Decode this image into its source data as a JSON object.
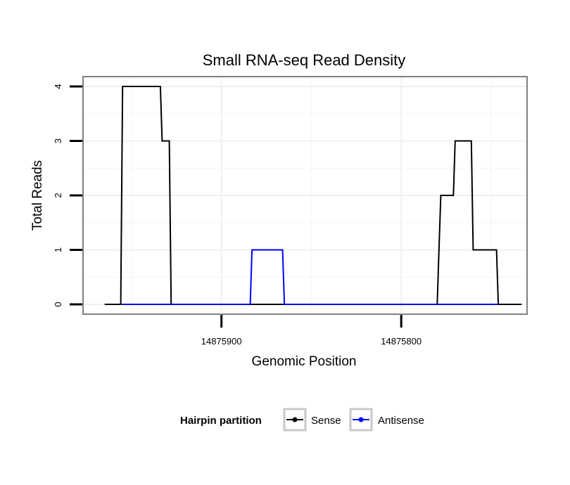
{
  "chart_data": {
    "type": "line",
    "title": "Small RNA-seq Read Density",
    "xlabel": "Genomic Position",
    "ylabel": "Total Reads",
    "x_reversed": true,
    "xlim": [
      14875977,
      14875730
    ],
    "ylim": [
      -0.18,
      4.18
    ],
    "x_ticks": [
      14875900,
      14875800
    ],
    "x_tick_labels": [
      "14875900",
      "14875800"
    ],
    "y_ticks": [
      0,
      1,
      2,
      3,
      4
    ],
    "y_tick_labels": [
      "0",
      "1",
      "2",
      "3",
      "4"
    ],
    "grid": true,
    "legend": {
      "title": "Hairpin partition",
      "placement": "bottom",
      "entries": [
        {
          "name": "Sense",
          "color": "#000000"
        },
        {
          "name": "Antisense",
          "color": "#0000ff"
        }
      ]
    },
    "series": [
      {
        "name": "Sense",
        "color": "#000000",
        "x": [
          14875965,
          14875956,
          14875955,
          14875934,
          14875933,
          14875929,
          14875928,
          14875955.5,
          14875916,
          14875884,
          14875874,
          14875862,
          14875854,
          14875824,
          14875780,
          14875779,
          14875778,
          14875771,
          14875770,
          14875761,
          14875760,
          14875747,
          14875746,
          14875734,
          14875733,
          14875740
        ],
        "y": [
          0,
          0,
          4,
          4,
          3,
          3,
          0,
          0,
          0,
          0,
          0,
          0,
          0,
          0,
          0,
          1,
          2,
          2,
          3,
          3,
          1,
          1,
          0,
          0,
          0,
          0
        ]
      },
      {
        "name": "Antisense",
        "color": "#0000ff",
        "x": [
          14875955,
          14875928,
          14875884,
          14875883,
          14875866,
          14875865,
          14875824,
          14875780,
          14875746
        ],
        "y": [
          0,
          0,
          0,
          1,
          1,
          0,
          0,
          0,
          0
        ]
      }
    ]
  }
}
